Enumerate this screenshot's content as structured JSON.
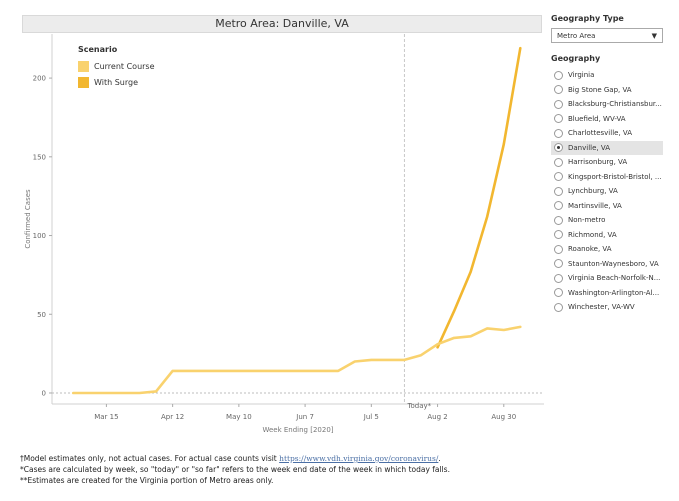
{
  "chart_data": {
    "type": "line",
    "title": "Metro Area: Danville, VA",
    "xlabel": "Week Ending [2020]",
    "ylabel": "Confirmed Cases",
    "x": [
      "2020-03-01",
      "2020-03-08",
      "2020-03-15",
      "2020-03-22",
      "2020-03-29",
      "2020-04-05",
      "2020-04-12",
      "2020-04-19",
      "2020-04-26",
      "2020-05-03",
      "2020-05-10",
      "2020-05-17",
      "2020-05-24",
      "2020-05-31",
      "2020-06-07",
      "2020-06-14",
      "2020-06-21",
      "2020-06-28",
      "2020-07-05",
      "2020-07-12",
      "2020-07-19",
      "2020-07-26",
      "2020-08-02",
      "2020-08-09",
      "2020-08-16",
      "2020-08-23",
      "2020-08-30",
      "2020-09-06"
    ],
    "series": [
      {
        "name": "Current Course",
        "color": "#f9d26e",
        "values": [
          0,
          0,
          0,
          0,
          0,
          1,
          14,
          14,
          14,
          14,
          14,
          14,
          14,
          14,
          14,
          14,
          14,
          20,
          21,
          21,
          21,
          24,
          31,
          35,
          36,
          41,
          40,
          42
        ]
      },
      {
        "name": "With Surge",
        "color": "#f2b730",
        "values": [
          null,
          null,
          null,
          null,
          null,
          null,
          null,
          null,
          null,
          null,
          null,
          null,
          null,
          null,
          null,
          null,
          null,
          null,
          null,
          null,
          null,
          null,
          29,
          52,
          77,
          112,
          158,
          219
        ]
      }
    ],
    "xticks": [
      {
        "date": "2020-03-15",
        "label": "Mar 15"
      },
      {
        "date": "2020-04-12",
        "label": "Apr 12"
      },
      {
        "date": "2020-05-10",
        "label": "May 10"
      },
      {
        "date": "2020-06-07",
        "label": "Jun 7"
      },
      {
        "date": "2020-07-05",
        "label": "Jul 5"
      },
      {
        "date": "2020-08-02",
        "label": "Aug 2"
      },
      {
        "date": "2020-08-30",
        "label": "Aug 30"
      }
    ],
    "yticks": [
      0,
      50,
      100,
      150,
      200
    ],
    "ylim": [
      -7,
      228
    ],
    "xlim": [
      "2020-02-21",
      "2020-09-16"
    ],
    "today": {
      "date": "2020-07-19",
      "label": "Today*"
    },
    "legend": {
      "title": "Scenario",
      "position": "top-left"
    },
    "grid": false
  },
  "sidebar": {
    "geo_type_title": "Geography Type",
    "geo_type_value": "Metro Area",
    "geo_title": "Geography",
    "items": [
      {
        "label": "Virginia",
        "selected": false
      },
      {
        "label": "Big Stone Gap, VA",
        "selected": false
      },
      {
        "label": "Blacksburg-Christiansbur...",
        "selected": false
      },
      {
        "label": "Bluefield, WV-VA",
        "selected": false
      },
      {
        "label": "Charlottesville, VA",
        "selected": false
      },
      {
        "label": "Danville, VA",
        "selected": true
      },
      {
        "label": "Harrisonburg, VA",
        "selected": false
      },
      {
        "label": "Kingsport-Bristol-Bristol, ...",
        "selected": false
      },
      {
        "label": "Lynchburg, VA",
        "selected": false
      },
      {
        "label": "Martinsville, VA",
        "selected": false
      },
      {
        "label": "Non-metro",
        "selected": false
      },
      {
        "label": "Richmond, VA",
        "selected": false
      },
      {
        "label": "Roanoke, VA",
        "selected": false
      },
      {
        "label": "Staunton-Waynesboro, VA",
        "selected": false
      },
      {
        "label": "Virginia Beach-Norfolk-N...",
        "selected": false
      },
      {
        "label": "Washington-Arlington-Al...",
        "selected": false
      },
      {
        "label": "Winchester, VA-WV",
        "selected": false
      }
    ]
  },
  "footnotes": {
    "line1_prefix": "†Model estimates only, not actual cases. For actual case counts visit ",
    "line1_link": "https://www.vdh.virginia.gov/coronavirus/",
    "line1_suffix": ".",
    "line2": "*Cases are calculated by week, so \"today\" or \"so far\" refers to the week end date of the week in which today falls.",
    "line3": "**Estimates are created for the Virginia portion of Metro areas only."
  }
}
